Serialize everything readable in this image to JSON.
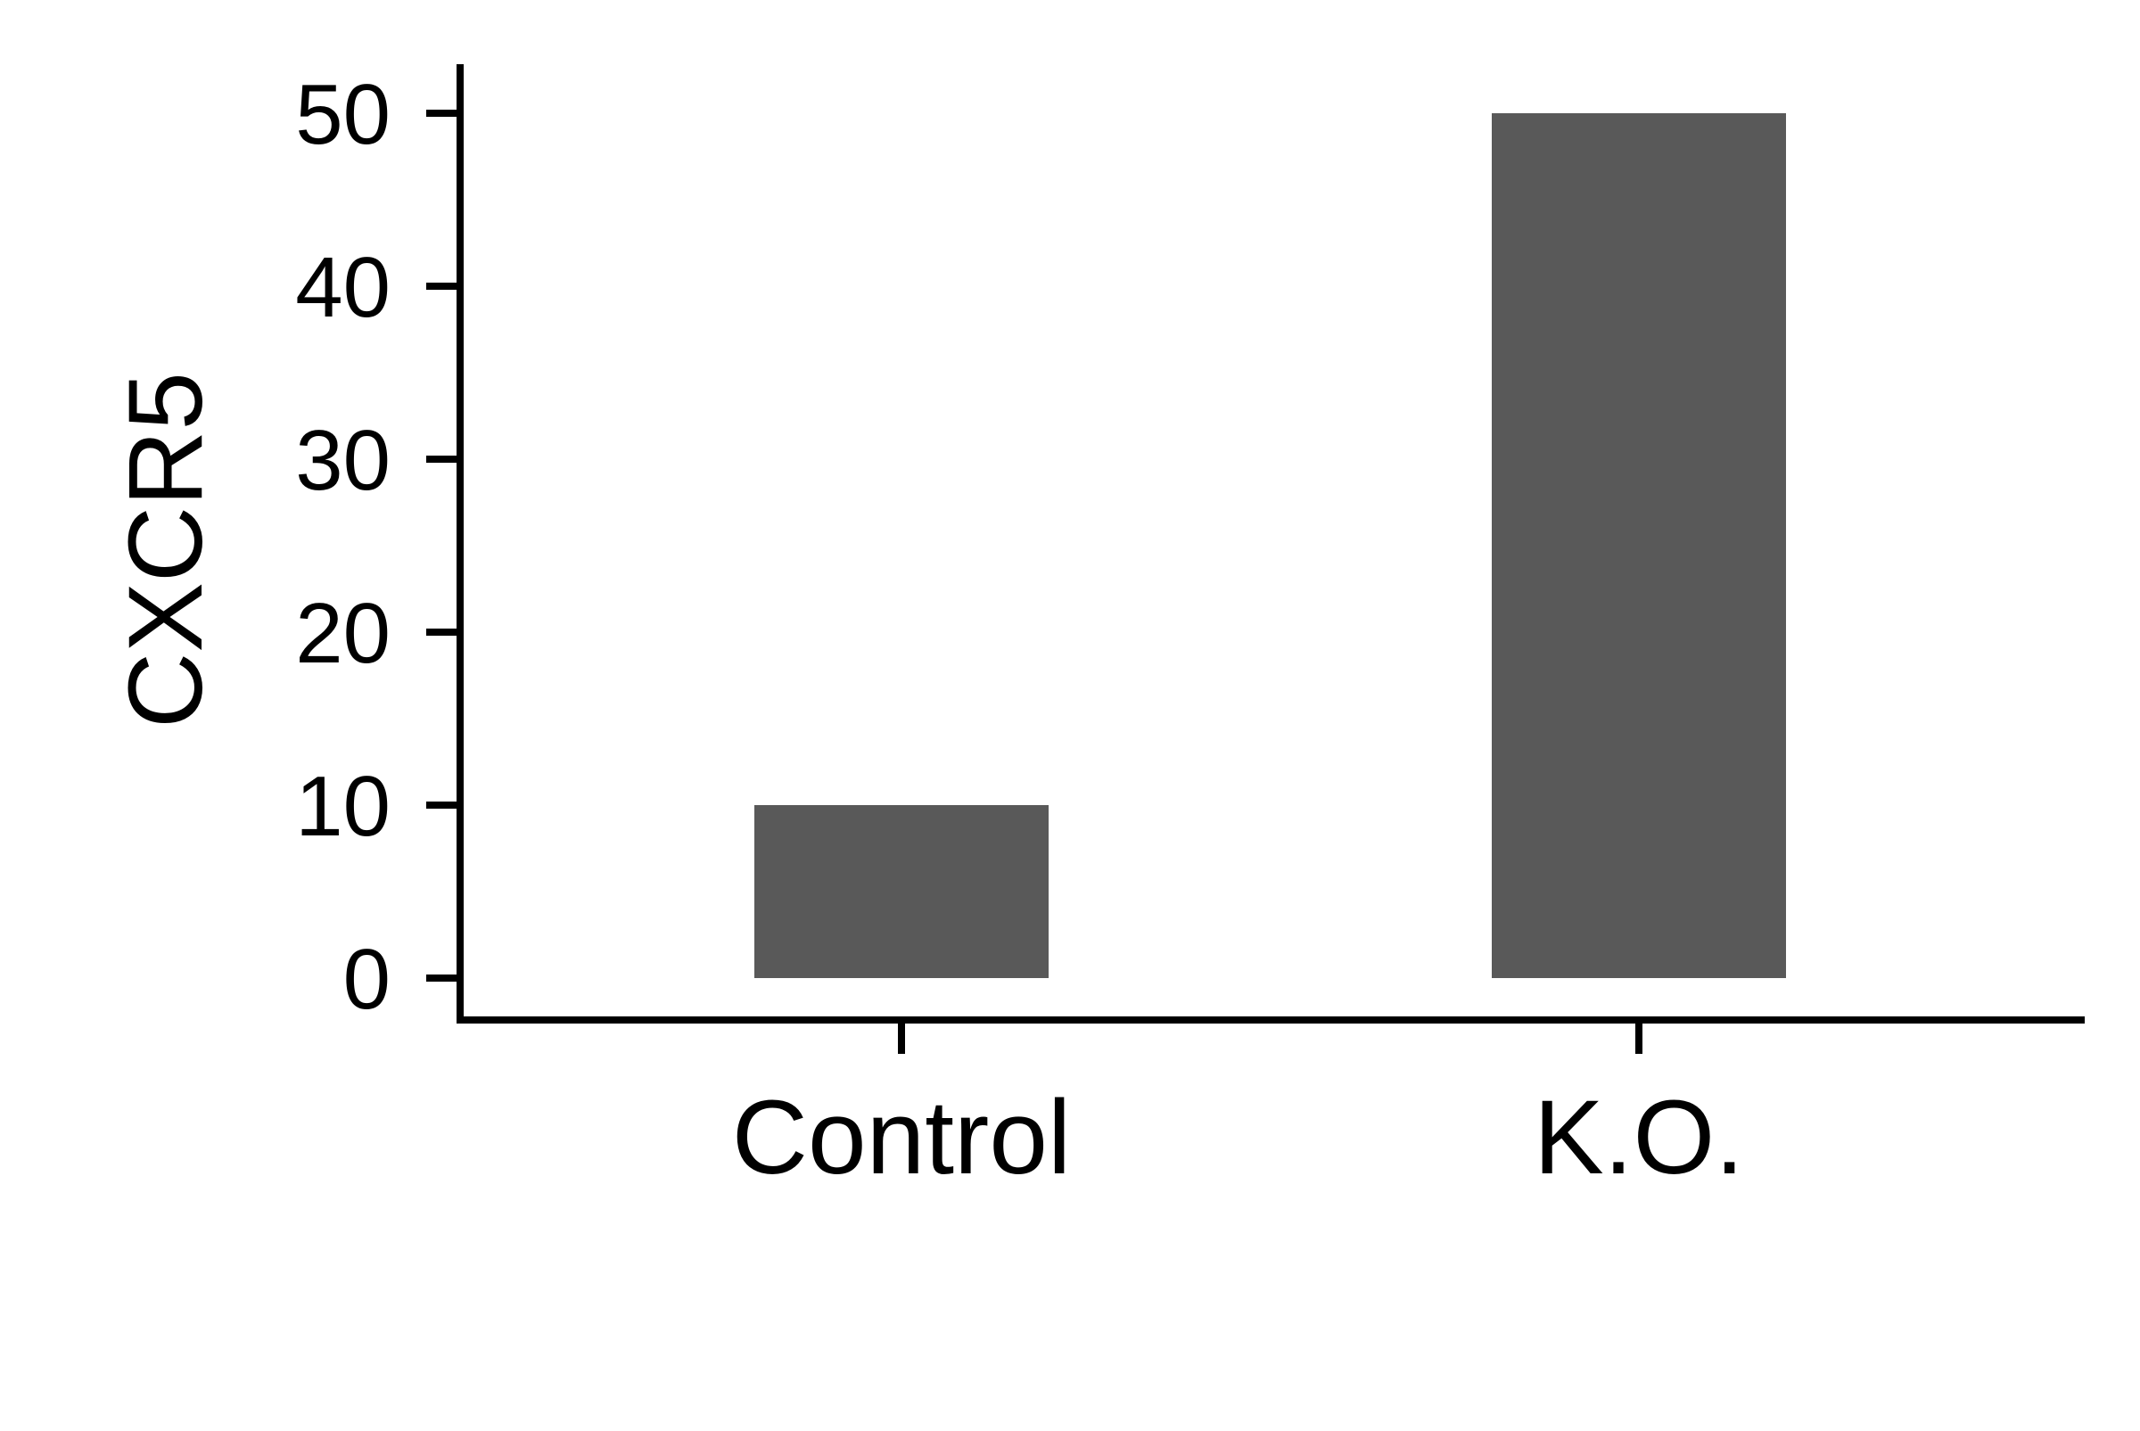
{
  "chart_data": {
    "type": "bar",
    "categories": [
      "Control",
      "K.O."
    ],
    "values": [
      10,
      50
    ],
    "title": "",
    "xlabel": "",
    "ylabel": "CXCR5",
    "ylim": [
      0,
      50
    ],
    "yticks": [
      0,
      10,
      20,
      30,
      40,
      50
    ],
    "grid": false,
    "legend": "none",
    "colors": {
      "bar": "#595959",
      "axis": "#000000",
      "background": "#ffffff"
    }
  }
}
